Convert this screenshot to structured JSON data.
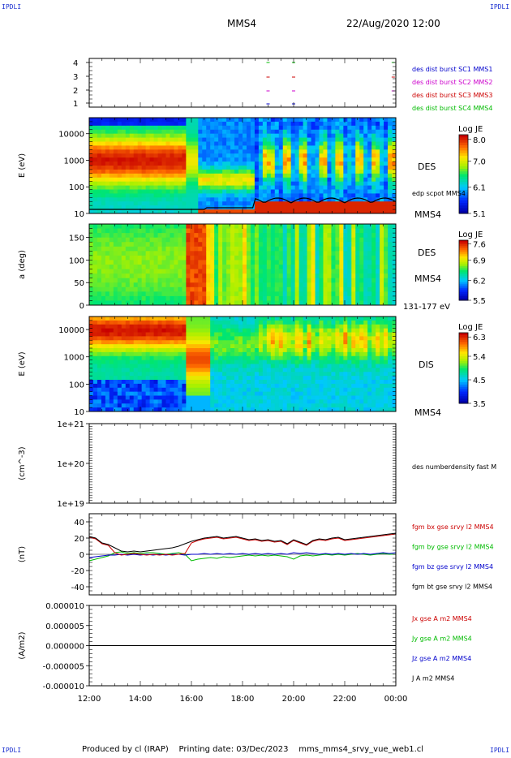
{
  "header": {
    "corner_left_top": "IPDLI",
    "corner_right_top": "IPDLI",
    "corner_left_bottom": "IPDLI",
    "corner_right_bottom": "IPDLI",
    "spacecraft": "MMS4",
    "datetime": "22/Aug/2020 12:00"
  },
  "footer": {
    "produced_by": "Produced by cl (IRAP)",
    "printing_date": "Printing date: 03/Dec/2023",
    "filename": "mms_mms4_srvy_vue_web1.cl"
  },
  "colors": {
    "mms1": "#0000cc",
    "mms2": "#cc00cc",
    "mms3": "#cc0000",
    "mms4": "#00bb00",
    "bx": "#cc0000",
    "by": "#00bb00",
    "bz": "#0000cc",
    "bt": "#000000"
  },
  "chart_data": [
    {
      "type": "scatter",
      "yticks": [
        "1",
        "2",
        "3",
        "4"
      ],
      "legend": [
        "des dist burst SC1 MMS1",
        "des dist burst SC2 MMS2",
        "des dist burst SC3 MMS3",
        "des dist burst SC4 MMS4"
      ],
      "marks_hours": [
        {
          "sc": 1,
          "x": [
            19.0,
            20.0
          ]
        },
        {
          "sc": 2,
          "x": [
            19.0,
            20.0,
            23.9
          ]
        },
        {
          "sc": 3,
          "x": [
            19.0,
            20.0,
            23.9
          ]
        },
        {
          "sc": 4,
          "x": [
            19.0,
            20.0,
            23.9
          ]
        }
      ],
      "xlim": [
        12,
        24
      ]
    },
    {
      "type": "heatmap",
      "ylabel": "E (eV)",
      "yticks": [
        "10",
        "100",
        "1000",
        "10000"
      ],
      "ylim": [
        10,
        40000
      ],
      "scale": "log",
      "colorbar_label": "Log JE",
      "colorbar_ticks": [
        "8.0",
        "7.0",
        "6.1",
        "5.1"
      ],
      "labels": [
        "DES",
        "edp scpot MMS4",
        "MMS4"
      ]
    },
    {
      "type": "heatmap",
      "ylabel": "a (deg)",
      "yticks": [
        "0",
        "50",
        "100",
        "150"
      ],
      "ylim": [
        0,
        180
      ],
      "colorbar_label": "Log JE",
      "colorbar_ticks": [
        "7.6",
        "6.9",
        "6.2",
        "5.5"
      ],
      "labels": [
        "DES",
        "MMS4",
        "131-177 eV"
      ]
    },
    {
      "type": "heatmap",
      "ylabel": "E (eV)",
      "yticks": [
        "10",
        "100",
        "1000",
        "10000"
      ],
      "ylim": [
        10,
        30000
      ],
      "scale": "log",
      "colorbar_label": "Log JE",
      "colorbar_ticks": [
        "6.3",
        "5.4",
        "4.5",
        "3.5"
      ],
      "labels": [
        "DIS",
        "MMS4"
      ]
    },
    {
      "type": "line",
      "ylabel": "(cm^-3)",
      "yticks": [
        "1e+19",
        "1e+20",
        "1e+21"
      ],
      "legend": [
        "des numberdensity fast M"
      ]
    },
    {
      "type": "line",
      "ylabel": "(nT)",
      "yticks": [
        "-40",
        "-20",
        "0",
        "20",
        "40"
      ],
      "ylim": [
        -50,
        50
      ],
      "legend": [
        "fgm bx gse srvy l2 MMS4",
        "fgm by gse srvy l2 MMS4",
        "fgm bz gse srvy l2 MMS4",
        "fgm bt gse srvy l2 MMS4"
      ],
      "series": [
        {
          "component": "bt",
          "x": [
            12.0,
            12.25,
            12.5,
            12.75,
            13.0,
            13.25,
            13.5,
            13.75,
            14.0,
            14.25,
            14.5,
            14.75,
            15.0,
            15.25,
            15.5,
            15.75,
            16.0,
            16.25,
            16.5,
            16.75,
            17.0,
            17.25,
            17.5,
            17.75,
            18.0,
            18.25,
            18.5,
            18.75,
            19.0,
            19.25,
            19.5,
            19.75,
            20.0,
            20.25,
            20.5,
            20.75,
            21.0,
            21.25,
            21.5,
            21.75,
            22.0,
            22.25,
            22.5,
            22.75,
            23.0,
            23.25,
            23.5,
            23.75,
            24.0
          ],
          "values": [
            22,
            20,
            14,
            12,
            8,
            4,
            3,
            4,
            3,
            4,
            5,
            6,
            7,
            8,
            10,
            13,
            16,
            18,
            20,
            21,
            22,
            20,
            21,
            22,
            20,
            18,
            19,
            17,
            18,
            16,
            17,
            13,
            18,
            15,
            12,
            17,
            19,
            18,
            20,
            21,
            18,
            19,
            20,
            21,
            22,
            23,
            24,
            25,
            26
          ]
        },
        {
          "component": "bx",
          "x": [
            12.0,
            12.25,
            12.5,
            12.75,
            13.0,
            13.25,
            13.5,
            13.75,
            14.0,
            14.25,
            14.5,
            14.75,
            15.0,
            15.25,
            15.5,
            15.75,
            16.0,
            16.25,
            16.5,
            16.75,
            17.0,
            17.25,
            17.5,
            17.75,
            18.0,
            18.25,
            18.5,
            18.75,
            19.0,
            19.25,
            19.5,
            19.75,
            20.0,
            20.25,
            20.5,
            20.75,
            21.0,
            21.25,
            21.5,
            21.75,
            22.0,
            22.25,
            22.5,
            22.75,
            23.0,
            23.25,
            23.5,
            23.75,
            24.0
          ],
          "values": [
            21,
            19,
            13,
            11,
            2,
            -1,
            0,
            1,
            0,
            -1,
            0,
            -1,
            0,
            -1,
            0,
            1,
            14,
            17,
            19,
            20,
            21,
            19,
            20,
            21,
            19,
            17,
            18,
            16,
            17,
            15,
            16,
            12,
            17,
            14,
            11,
            16,
            18,
            17,
            19,
            20,
            17,
            18,
            19,
            20,
            21,
            22,
            23,
            24,
            25
          ]
        },
        {
          "component": "by",
          "x": [
            12.0,
            12.25,
            12.5,
            12.75,
            13.0,
            13.25,
            13.5,
            13.75,
            14.0,
            14.25,
            14.5,
            14.75,
            15.0,
            15.25,
            15.5,
            15.75,
            16.0,
            16.25,
            16.5,
            16.75,
            17.0,
            17.25,
            17.5,
            17.75,
            18.0,
            18.25,
            18.5,
            18.75,
            19.0,
            19.25,
            19.5,
            19.75,
            20.0,
            20.25,
            20.5,
            20.75,
            21.0,
            21.25,
            21.5,
            21.75,
            22.0,
            22.25,
            22.5,
            22.75,
            23.0,
            23.25,
            23.5,
            23.75,
            24.0
          ],
          "values": [
            -8,
            -6,
            -4,
            -2,
            2,
            3,
            1,
            2,
            1,
            2,
            2,
            1,
            0,
            1,
            2,
            0,
            -8,
            -6,
            -5,
            -4,
            -5,
            -3,
            -4,
            -3,
            -2,
            -1,
            -2,
            -1,
            -2,
            -1,
            -2,
            -3,
            -6,
            -2,
            -1,
            -2,
            -1,
            0,
            -1,
            0,
            -1,
            0,
            1,
            0,
            -1,
            0,
            1,
            0,
            0
          ]
        },
        {
          "component": "bz",
          "x": [
            12.0,
            12.25,
            12.5,
            12.75,
            13.0,
            13.25,
            13.5,
            13.75,
            14.0,
            14.25,
            14.5,
            14.75,
            15.0,
            15.25,
            15.5,
            15.75,
            16.0,
            16.25,
            16.5,
            16.75,
            17.0,
            17.25,
            17.5,
            17.75,
            18.0,
            18.25,
            18.5,
            18.75,
            19.0,
            19.25,
            19.5,
            19.75,
            20.0,
            20.25,
            20.5,
            20.75,
            21.0,
            21.25,
            21.5,
            21.75,
            22.0,
            22.25,
            22.5,
            22.75,
            23.0,
            23.25,
            23.5,
            23.75,
            24.0
          ],
          "values": [
            -4,
            -3,
            -2,
            -1,
            -1,
            0,
            -1,
            0,
            -1,
            0,
            -1,
            0,
            -1,
            0,
            0,
            -1,
            0,
            0,
            1,
            0,
            1,
            0,
            1,
            0,
            1,
            0,
            1,
            0,
            1,
            0,
            1,
            0,
            2,
            1,
            2,
            1,
            0,
            1,
            0,
            1,
            0,
            1,
            0,
            1,
            0,
            1,
            2,
            1,
            2
          ]
        }
      ]
    },
    {
      "type": "line",
      "ylabel": "(A/m2)",
      "yticks": [
        "-0.000010",
        "-0.000005",
        "0.000000",
        "0.000005",
        "0.000010"
      ],
      "ylim": [
        -1e-05,
        1e-05
      ],
      "legend": [
        "Jx gse A m2 MMS4",
        "Jy gse A m2 MMS4",
        "Jz gse A m2 MMS4",
        "J A m2 MMS4"
      ],
      "xticks": [
        "12:00",
        "14:00",
        "16:00",
        "18:00",
        "20:00",
        "22:00",
        "00:00"
      ],
      "xlim": [
        12,
        24
      ]
    }
  ]
}
